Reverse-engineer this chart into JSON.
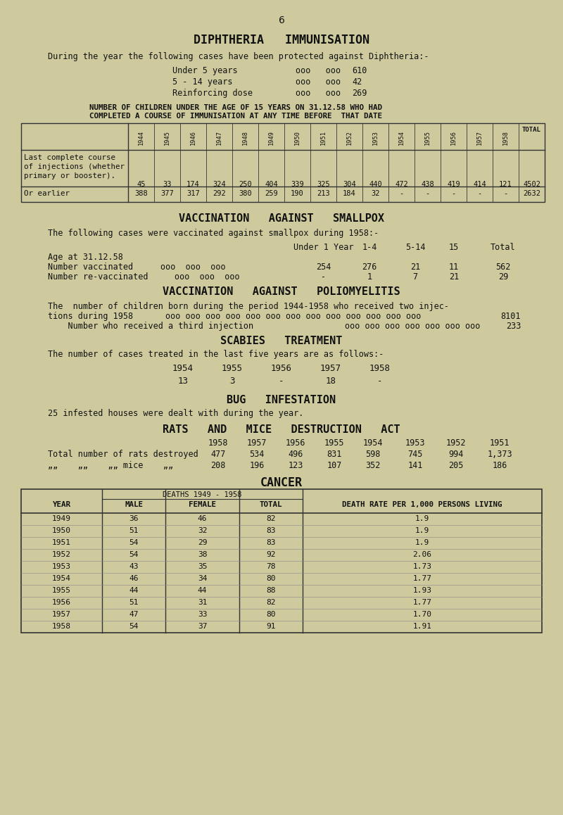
{
  "bg_color": "#ceca9e",
  "text_color": "#1a1a1a",
  "page_number": "6",
  "title1": "DIPHTHERIA   IMMUNISATION",
  "para1": "During the year the following cases have been protected against Diphtheria:-",
  "diph_label1": "Under 5 years",
  "diph_dots1": "ooo   ooo",
  "diph_val1": "610",
  "diph_label2": "5 - 14 years",
  "diph_dots2": "ooo   ooo",
  "diph_val2": "42",
  "diph_label3": "Reinforcing dose",
  "diph_dots3": "ooo   ooo",
  "diph_val3": "269",
  "table1_header_line1": "NUMBER OF CHILDREN UNDER THE AGE OF 15 YEARS ON 31.12.58 WHO HAD",
  "table1_header_line2": "COMPLETED A COURSE OF IMMUNISATION AT ANY TIME BEFORE  THAT DATE",
  "table1_years": [
    "1944",
    "1945",
    "1946",
    "1947",
    "1948",
    "1949",
    "1950",
    "1951",
    "1952",
    "1953",
    "1954",
    "1955",
    "1956",
    "1957",
    "1958",
    "TOTAL"
  ],
  "table1_row1_label_lines": [
    "Last complete course",
    "of injections (whether",
    "primary or booster)."
  ],
  "table1_row1_values": [
    "45",
    "33",
    "174",
    "324",
    "250",
    "404",
    "339",
    "325",
    "304",
    "440",
    "472",
    "438",
    "419",
    "414",
    "121",
    "4502"
  ],
  "table1_row2_label": "Or earlier",
  "table1_row2_values": [
    "388",
    "377",
    "317",
    "292",
    "380",
    "259",
    "190",
    "213",
    "184",
    "32",
    "-",
    "-",
    "-",
    "-",
    "-",
    "2632"
  ],
  "title2": "VACCINATION   AGAINST   SMALLPOX",
  "para2": "The following cases were vaccinated against smallpox during 1958:-",
  "sv_header_labels": [
    "Age at 31.12.58",
    "Number vaccinated",
    "Number re-vaccinated"
  ],
  "sv_dots_label2": "ooo  ooo  ooo",
  "sv_dots_label3": "ooo  ooo  ooo",
  "sv_col_labels": [
    "Under 1 Year",
    "1-4",
    "5-14",
    "15",
    "Total"
  ],
  "sv_row1_vals": [
    "",
    "",
    "",
    "",
    ""
  ],
  "sv_row2_vals": [
    "254",
    "276",
    "21",
    "11",
    "562"
  ],
  "sv_row3_vals": [
    "-",
    "1",
    "7",
    "21",
    "29"
  ],
  "title3": "VACCINATION   AGAINST   POLIOMYELITIS",
  "para3a": "The  number of children born during the period 1944-1958 who received two injec-",
  "para3b_prefix": "tions during 1958",
  "para3b_dots": "ooo ooo ooo ooo ooo ooo ooo ooo ooo ooo ooo ooo ooo",
  "para3b_val": "8101",
  "para3c_prefix": "    Number who received a third injection",
  "para3c_dots": "ooo ooo ooo ooo ooo ooo ooo",
  "para3c_val": "233",
  "title4": "SCABIES   TREATMENT",
  "para4": "The number of cases treated in the last five years are as follows:-",
  "scabies_years": [
    "1954",
    "1955",
    "1956",
    "1957",
    "1958"
  ],
  "scabies_values": [
    "13",
    "3",
    "-",
    "18",
    "-"
  ],
  "title5": "BUG   INFESTATION",
  "para5": "25 infested houses were dealt with during the year.",
  "title6": "RATS   AND   MICE   DESTRUCTION   ACT",
  "rats_years": [
    "1958",
    "1957",
    "1956",
    "1955",
    "1954",
    "1953",
    "1952",
    "1951"
  ],
  "rats_values": [
    "477",
    "534",
    "496",
    "831",
    "598",
    "745",
    "994",
    "1,373"
  ],
  "mice_values": [
    "208",
    "196",
    "123",
    "107",
    "352",
    "141",
    "205",
    "186"
  ],
  "rats_label": "Total number of rats destroyed",
  "mice_label": "„„    „„    „„ mice    „„",
  "title7": "CANCER",
  "cancer_col_headers": [
    "YEAR",
    "MALE",
    "FEMALE",
    "TOTAL",
    "DEATH RATE PER 1,000 PERSONS LIVING"
  ],
  "cancer_sub_header": "DEATHS 1949 - 1958",
  "cancer_rows": [
    {
      "year": "1949",
      "male": "36",
      "female": "46",
      "total": "82",
      "rate": "1.9"
    },
    {
      "year": "1950",
      "male": "51",
      "female": "32",
      "total": "83",
      "rate": "1.9"
    },
    {
      "year": "1951",
      "male": "54",
      "female": "29",
      "total": "83",
      "rate": "1.9"
    },
    {
      "year": "1952",
      "male": "54",
      "female": "38",
      "total": "92",
      "rate": "2.06"
    },
    {
      "year": "1953",
      "male": "43",
      "female": "35",
      "total": "78",
      "rate": "1.73"
    },
    {
      "year": "1954",
      "male": "46",
      "female": "34",
      "total": "80",
      "rate": "1.77"
    },
    {
      "year": "1955",
      "male": "44",
      "female": "44",
      "total": "88",
      "rate": "1.93"
    },
    {
      "year": "1956",
      "male": "51",
      "female": "31",
      "total": "82",
      "rate": "1.77"
    },
    {
      "year": "1957",
      "male": "47",
      "female": "33",
      "total": "80",
      "rate": "1.70"
    },
    {
      "year": "1958",
      "male": "54",
      "female": "37",
      "total": "91",
      "rate": "1.91"
    }
  ]
}
